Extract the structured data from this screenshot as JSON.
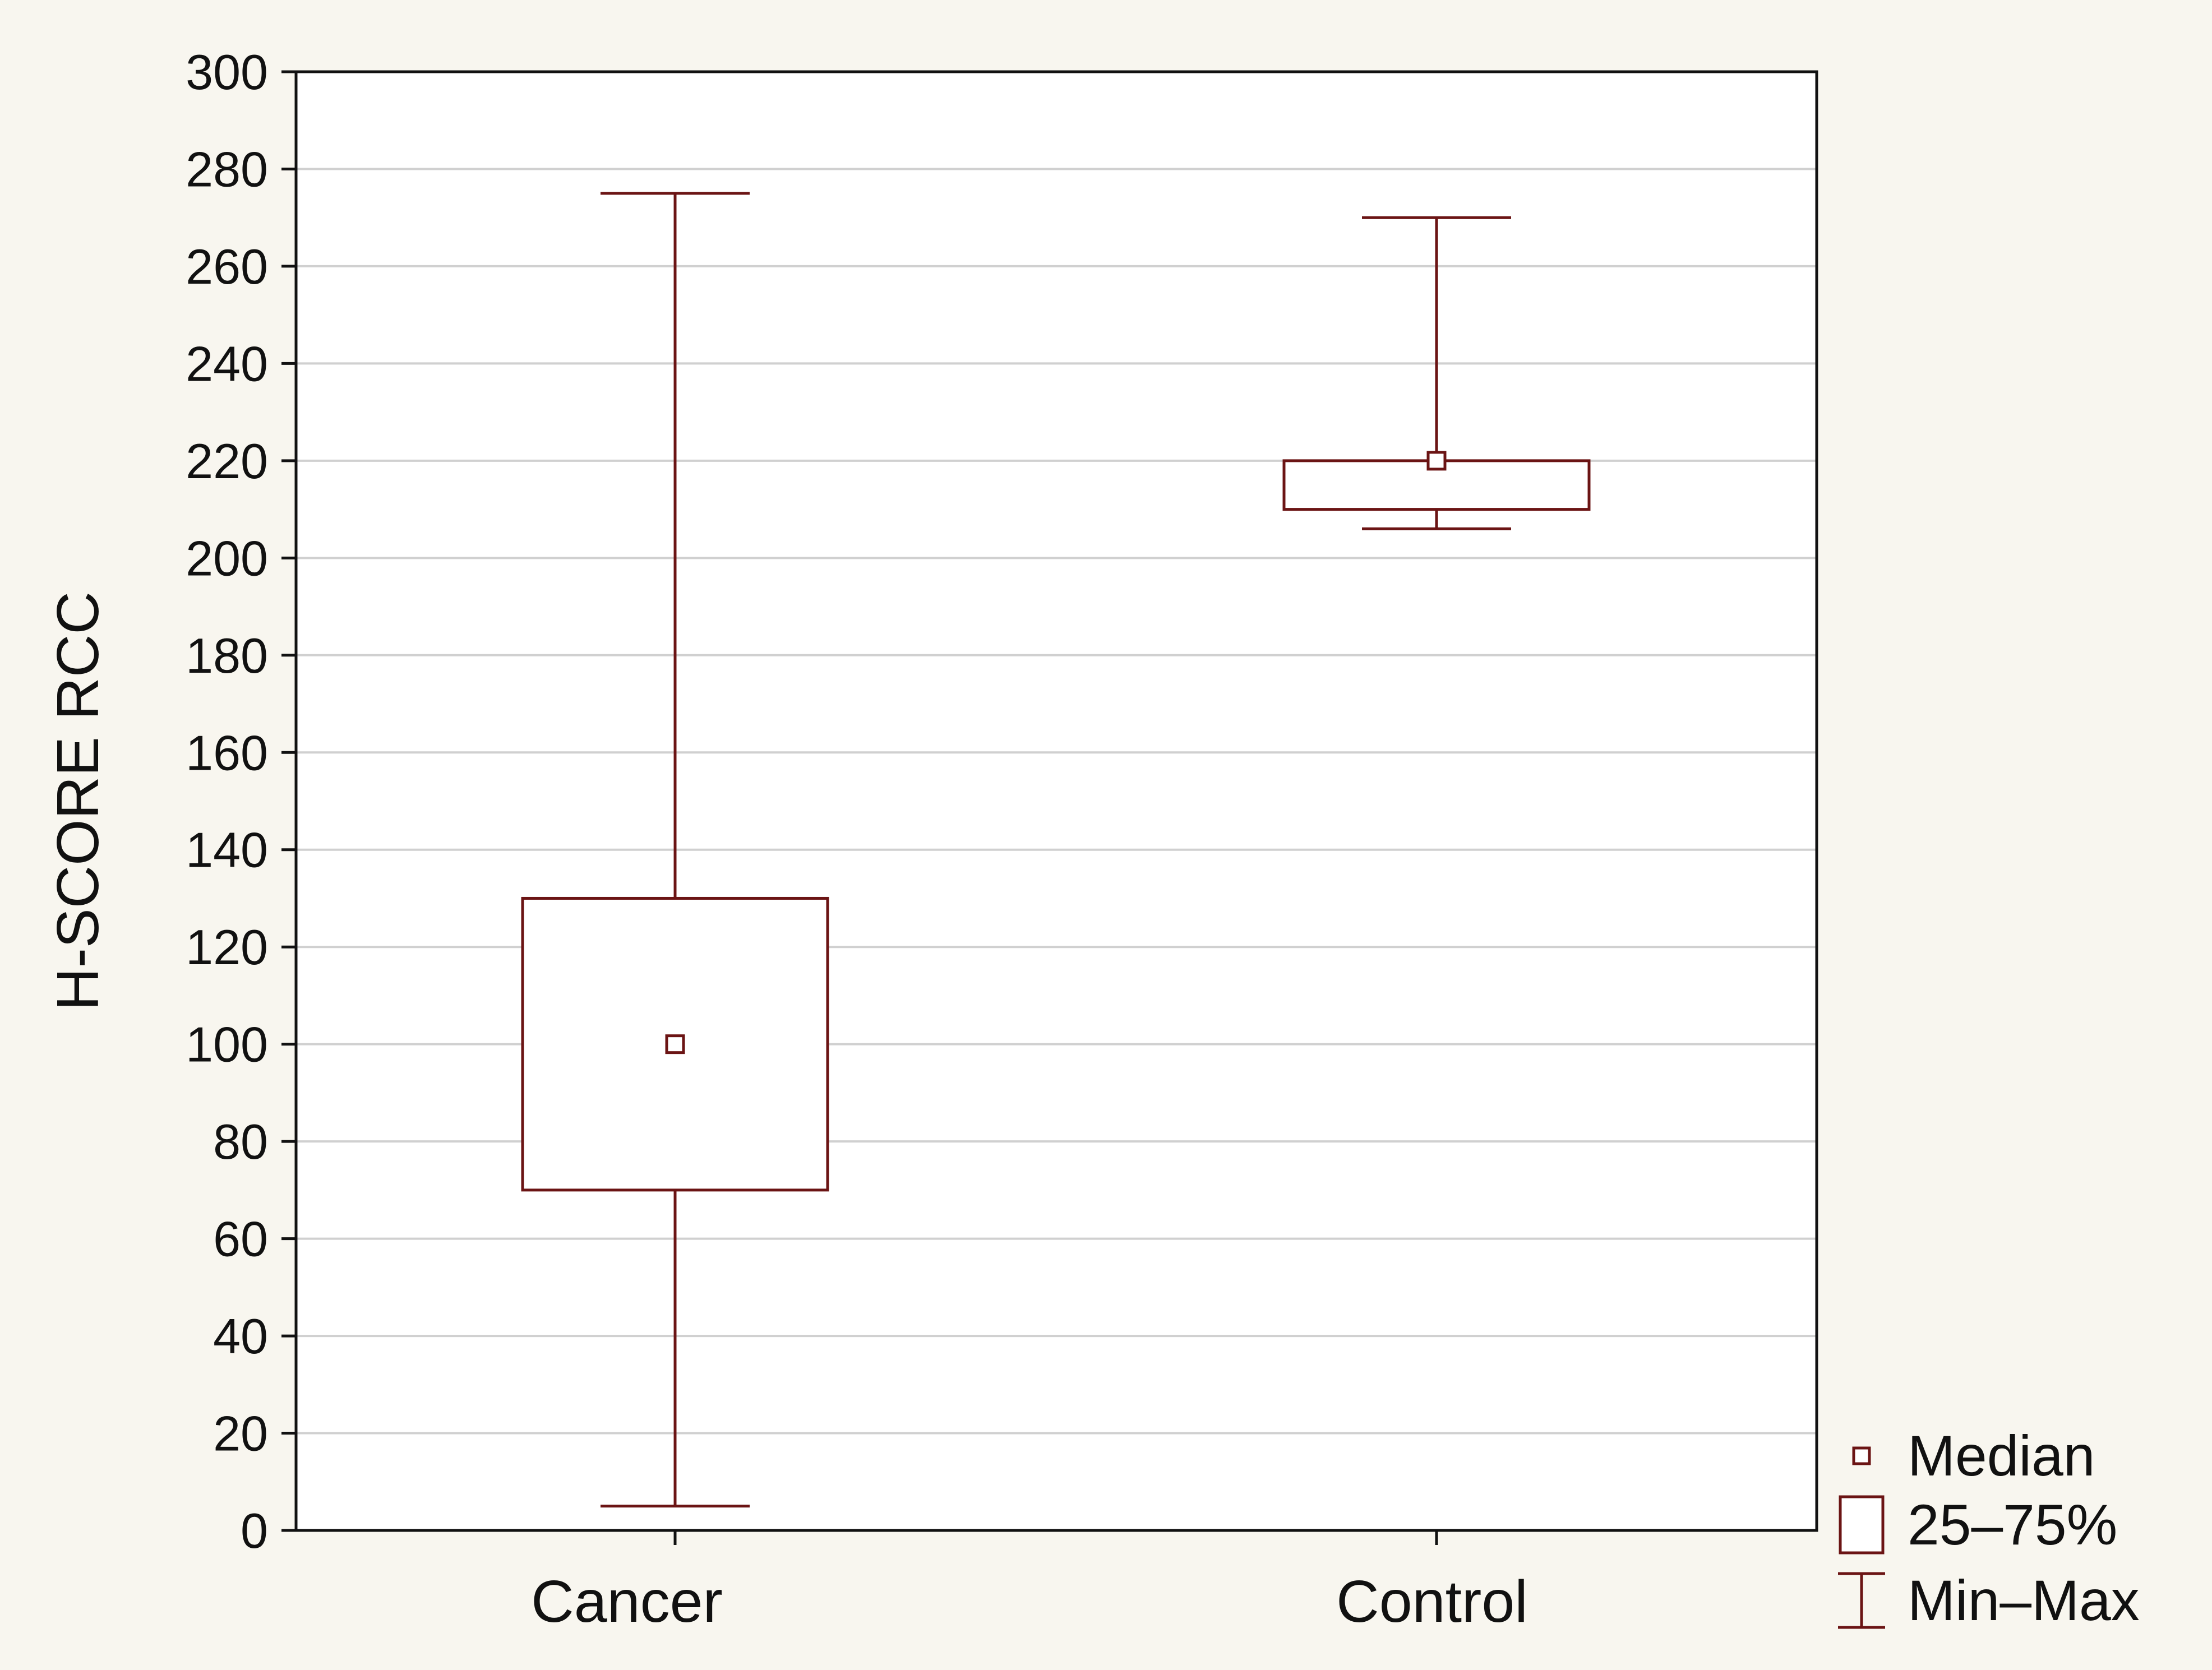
{
  "chart_data": {
    "type": "box",
    "ylabel": "H-SCORE RCC",
    "ylim": [
      0,
      300
    ],
    "yticks": [
      0,
      20,
      40,
      60,
      80,
      100,
      120,
      140,
      160,
      180,
      200,
      220,
      240,
      260,
      280,
      300
    ],
    "grid": true,
    "legend_position": "bottom-right",
    "categories": [
      "Cancer",
      "Control"
    ],
    "boxes": [
      {
        "category": "Cancer",
        "min": 5,
        "q1": 70,
        "median": 100,
        "q3": 130,
        "max": 275
      },
      {
        "category": "Control",
        "min": 206,
        "q1": 210,
        "median": 220,
        "q3": 220,
        "max": 270
      }
    ],
    "legend": [
      {
        "symbol": "median",
        "label": "Median"
      },
      {
        "symbol": "box",
        "label": "25–75%"
      },
      {
        "symbol": "range",
        "label": "Min–Max"
      }
    ],
    "colors": {
      "stroke": "#6b1414",
      "grid": "#d0d0d0",
      "axis": "#111111",
      "plot_bg": "#ffffff"
    }
  }
}
